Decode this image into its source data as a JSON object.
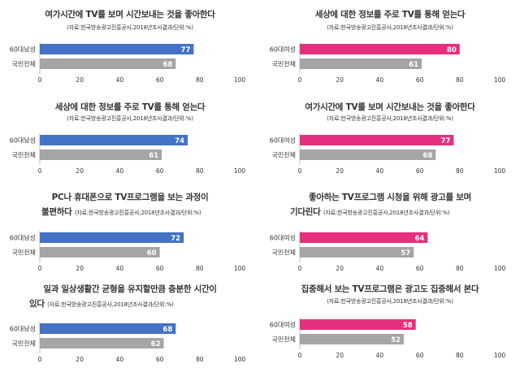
{
  "palette": {
    "men": "#4472C4",
    "women": "#E6307E",
    "national": "#A5A5A5"
  },
  "chart_data": [
    {
      "type": "bar",
      "orientation": "horizontal",
      "title": "여가시간에 TV를 보며 시간보내는 것을 좋아한다",
      "source": "(자료:한국방송광고진흥공사,2018년조사결과/단위:%)",
      "categories": [
        "60대남성",
        "국민전체"
      ],
      "values": [
        77,
        68
      ],
      "xlim": [
        0,
        100
      ],
      "ticks": [
        0,
        20,
        40,
        60,
        80,
        100
      ]
    },
    {
      "type": "bar",
      "orientation": "horizontal",
      "title": "세상에 대한 정보를 주로 TV를 통해 얻는다",
      "source": "(자료:한국방송광고진흥공사,2018년조사결과/단위:%)",
      "categories": [
        "60대여성",
        "국민전체"
      ],
      "values": [
        80,
        61
      ],
      "xlim": [
        0,
        100
      ],
      "ticks": [
        0,
        20,
        40,
        60,
        80,
        100
      ]
    },
    {
      "type": "bar",
      "orientation": "horizontal",
      "title": "세상에 대한 정보를 주로 TV를 통해 얻는다",
      "source": "(자료:한국방송광고진흥공사,2018년조사결과/단위:%)",
      "categories": [
        "60대남성",
        "국민전체"
      ],
      "values": [
        74,
        61
      ],
      "xlim": [
        0,
        100
      ],
      "ticks": [
        0,
        20,
        40,
        60,
        80,
        100
      ]
    },
    {
      "type": "bar",
      "orientation": "horizontal",
      "title": "여가시간에 TV를 보며 시간보내는 것을 좋아한다",
      "source": "(자료:한국방송광고진흥공사,2018년조사결과/단위:%)",
      "categories": [
        "60대여성",
        "국민전체"
      ],
      "values": [
        77,
        68
      ],
      "xlim": [
        0,
        100
      ],
      "ticks": [
        0,
        20,
        40,
        60,
        80,
        100
      ]
    },
    {
      "type": "bar",
      "orientation": "horizontal",
      "title": "PC나 휴대폰으로 TV프로그램을 보는 과정이",
      "title_line2": "불편하다",
      "source": "(자료:한국방송광고진흥공사,2018년조사결과/단위:%)",
      "categories": [
        "60대남성",
        "국민전체"
      ],
      "values": [
        72,
        60
      ],
      "xlim": [
        0,
        100
      ],
      "ticks": [
        0,
        20,
        40,
        60,
        80,
        100
      ]
    },
    {
      "type": "bar",
      "orientation": "horizontal",
      "title": "좋아하는 TV프로그램 시청을 위해 광고를 보며",
      "title_line2": "기다린다",
      "source": "(자료:한국방송광고진흥공사,2018년조사결과/단위:%)",
      "categories": [
        "60대여성",
        "국민전체"
      ],
      "values": [
        64,
        57
      ],
      "xlim": [
        0,
        100
      ],
      "ticks": [
        0,
        20,
        40,
        60,
        80,
        100
      ]
    },
    {
      "type": "bar",
      "orientation": "horizontal",
      "title": "일과 일상생활간 균형을 유지할만큼 충분한 시간이",
      "title_line2": "있다",
      "source": "(자료:한국방송광고진흥공사,2018년조사결과/단위:%)",
      "categories": [
        "60대남성",
        "국민전체"
      ],
      "values": [
        68,
        62
      ],
      "xlim": [
        0,
        100
      ],
      "ticks": [
        0,
        20,
        40,
        60,
        80,
        100
      ]
    },
    {
      "type": "bar",
      "orientation": "horizontal",
      "title": "집중해서 보는 TV프로그램은 광고도 집중해서 본다",
      "source": "(자료:한국방송광고진흥공사,2018년조사결과/단위:%)",
      "categories": [
        "60대여성",
        "국민전체"
      ],
      "values": [
        58,
        52
      ],
      "xlim": [
        0,
        100
      ],
      "ticks": [
        0,
        20,
        40,
        60,
        80,
        100
      ]
    }
  ]
}
